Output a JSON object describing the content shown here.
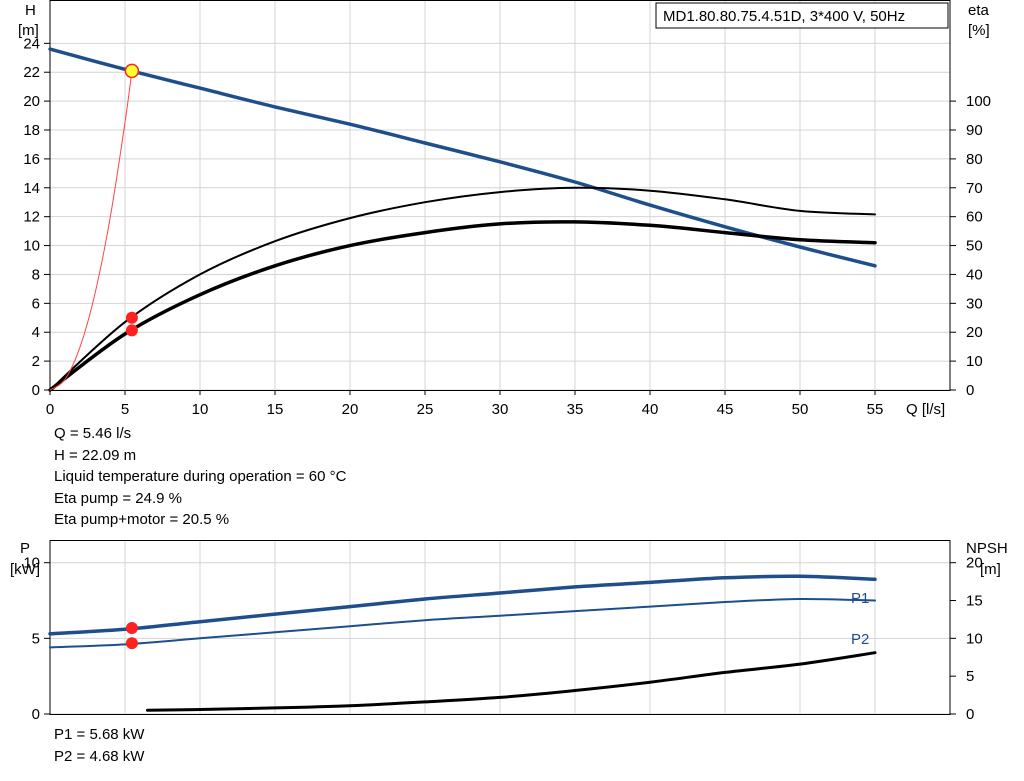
{
  "chart_data": [
    {
      "type": "line",
      "title": "",
      "model_label": "MD1.80.80.75.4.51D, 3*400 V, 50Hz",
      "xlabel": "Q [l/s]",
      "ylabel_left": [
        "H",
        "[m]"
      ],
      "ylabel_right": [
        "eta",
        "[%]"
      ],
      "xlim": [
        0,
        60
      ],
      "ylim_left": [
        0,
        27
      ],
      "ylim_right": [
        0,
        135
      ],
      "x_ticks": [
        "0",
        "5",
        "10",
        "15",
        "20",
        "25",
        "30",
        "35",
        "40",
        "45",
        "50",
        "55"
      ],
      "y_left_ticks": [
        "0",
        "2",
        "4",
        "6",
        "8",
        "10",
        "12",
        "14",
        "16",
        "18",
        "20",
        "22",
        "24"
      ],
      "y_right_ticks": [
        "0",
        "10",
        "20",
        "30",
        "40",
        "50",
        "60",
        "70",
        "80",
        "90",
        "100"
      ],
      "grid": true,
      "series": [
        {
          "axis": "left",
          "color": "#1f4e8c",
          "x": [
            0,
            5,
            10,
            15,
            20,
            25,
            30,
            35,
            40,
            45,
            50,
            55
          ],
          "y": [
            23.6,
            22.2,
            20.9,
            19.6,
            18.4,
            17.1,
            15.8,
            14.4,
            12.8,
            11.3,
            9.9,
            8.6
          ]
        },
        {
          "axis": "right",
          "color": "#000000",
          "x": [
            0,
            5,
            10,
            15,
            20,
            25,
            30,
            35,
            40,
            45,
            50,
            55
          ],
          "y": [
            0,
            23.5,
            40,
            51.5,
            59.5,
            65,
            68.5,
            70,
            69,
            66,
            62,
            60.8
          ]
        },
        {
          "axis": "right",
          "color": "#000000",
          "x": [
            0,
            5,
            10,
            15,
            20,
            25,
            30,
            35,
            40,
            45,
            50,
            55
          ],
          "y": [
            0,
            19.4,
            33,
            43,
            50,
            54.5,
            57.5,
            58.2,
            57,
            54.5,
            52,
            51
          ]
        },
        {
          "axis": "left",
          "color": "#ff4444",
          "x": [
            0,
            1,
            2,
            3,
            4,
            5,
            5.46
          ],
          "y": [
            0,
            0.74,
            2.97,
            6.68,
            11.86,
            18.53,
            22.09
          ]
        }
      ],
      "operating_point": {
        "Q": 5.46,
        "H": 22.09,
        "eta_pump": 24.9,
        "eta_pump_motor": 20.5
      }
    },
    {
      "type": "line",
      "title": "",
      "xlim": [
        0,
        60
      ],
      "ylabel_left": [
        "P",
        "[kW]"
      ],
      "ylabel_right": [
        "NPSH",
        "[m]"
      ],
      "ylim_left": [
        0,
        11.5
      ],
      "ylim_right": [
        0,
        23
      ],
      "y_left_ticks": [
        "0",
        "5",
        "10"
      ],
      "y_right_ticks": [
        "0",
        "5",
        "10",
        "15",
        "20"
      ],
      "grid": true,
      "series": [
        {
          "name": "P1",
          "axis": "left",
          "color": "#1f4e8c",
          "x": [
            0,
            5,
            10,
            15,
            20,
            25,
            30,
            35,
            40,
            45,
            50,
            55
          ],
          "y": [
            5.3,
            5.6,
            6.1,
            6.6,
            7.1,
            7.6,
            8.0,
            8.4,
            8.7,
            9.0,
            9.1,
            8.9
          ]
        },
        {
          "name": "P2",
          "axis": "left",
          "color": "#1f4e8c",
          "x": [
            0,
            5,
            10,
            15,
            20,
            25,
            30,
            35,
            40,
            45,
            50,
            55
          ],
          "y": [
            4.4,
            4.6,
            5.0,
            5.4,
            5.8,
            6.2,
            6.5,
            6.8,
            7.1,
            7.4,
            7.6,
            7.5
          ]
        },
        {
          "axis": "right",
          "color": "#000000",
          "x": [
            6.5,
            10,
            15,
            20,
            25,
            30,
            35,
            40,
            45,
            50,
            55
          ],
          "y": [
            0.5,
            0.6,
            0.8,
            1.1,
            1.6,
            2.2,
            3.1,
            4.2,
            5.5,
            6.6,
            8.1
          ]
        }
      ],
      "operating_point": {
        "Q": 5.46,
        "P1": 5.68,
        "P2": 4.68
      }
    }
  ],
  "info_main": [
    "Q = 5.46 l/s",
    "H = 22.09 m",
    "Liquid temperature during operation = 60 °C",
    "Eta pump = 24.9 %",
    "Eta pump+motor = 20.5 %"
  ],
  "info_power": [
    "P1 = 5.68 kW",
    "P2 = 4.68 kW"
  ],
  "colors": {
    "grid": "#d4d4d4",
    "blue": "#1f4e8c",
    "marker": "#ff2020",
    "highlight": "#ffff33"
  }
}
